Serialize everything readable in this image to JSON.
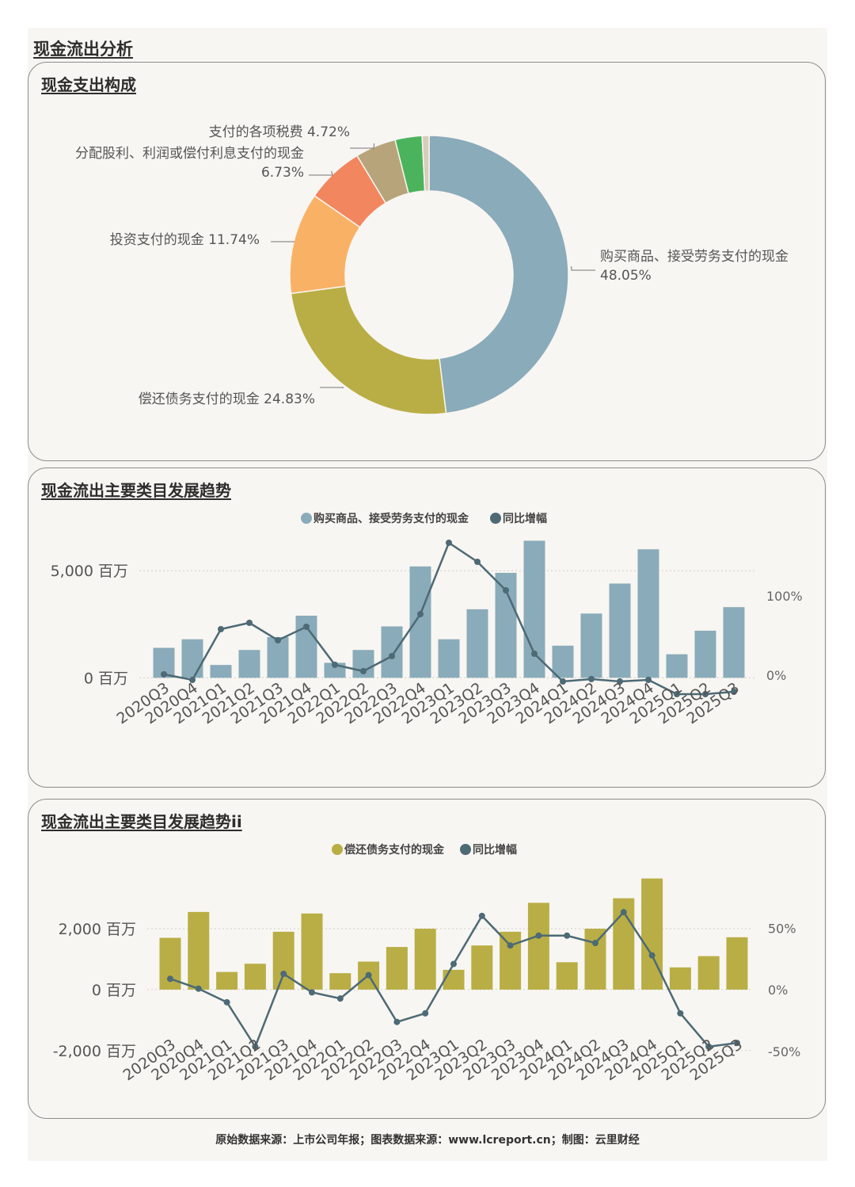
{
  "page": {
    "title": "现金流出分析",
    "footer": "原始数据来源：上市公司年报；图表数据来源：www.lcreport.cn；制图：云里财经"
  },
  "colors": {
    "background": "#f8f6f2",
    "blue_bar": "#8aabb9",
    "olive_bar": "#b9ae45",
    "line": "#4d6a75",
    "grid": "#cfcfcf"
  },
  "chart_data": [
    {
      "type": "pie",
      "title": "现金支出构成",
      "slices": [
        {
          "label": "购买商品、接受劳务支付的现金",
          "value": 48.05,
          "display": "48.05%",
          "color": "#8aabb9"
        },
        {
          "label": "偿还债务支付的现金",
          "value": 24.83,
          "display": "24.83%",
          "color": "#b9ae45"
        },
        {
          "label": "投资支付的现金",
          "value": 11.74,
          "display": "11.74%",
          "color": "#f9b265"
        },
        {
          "label": "分配股利、利润或偿付利息支付的现金",
          "value": 6.73,
          "display": "6.73%",
          "color": "#f2865f"
        },
        {
          "label": "支付的各项税费",
          "value": 4.72,
          "display": "4.72%",
          "color": "#b7a47a"
        },
        {
          "label": "",
          "value": 3.13,
          "display": "",
          "color": "#4bb35c"
        },
        {
          "label": "",
          "value": 0.8,
          "display": "",
          "color": "#d8cdb8"
        }
      ]
    },
    {
      "type": "bar",
      "title": "现金流出主要类目发展趋势",
      "legend": [
        "购买商品、接受劳务支付的现金",
        "同比增幅"
      ],
      "categories": [
        "2020Q3",
        "2020Q4",
        "2021Q1",
        "2021Q2",
        "2021Q3",
        "2021Q4",
        "2022Q1",
        "2022Q2",
        "2022Q3",
        "2022Q4",
        "2023Q1",
        "2023Q2",
        "2023Q3",
        "2023Q4",
        "2024Q1",
        "2024Q2",
        "2024Q3",
        "2024Q4",
        "2025Q1",
        "2025Q2",
        "2025Q3"
      ],
      "series": [
        {
          "name": "购买商品、接受劳务支付的现金",
          "kind": "bar",
          "axis": "left",
          "values": [
            1400,
            1800,
            600,
            1300,
            1900,
            2900,
            700,
            1300,
            2400,
            5200,
            1800,
            3200,
            4900,
            6400,
            1500,
            3000,
            4400,
            6000,
            1100,
            2200,
            3300
          ]
        },
        {
          "name": "同比增幅",
          "kind": "line",
          "axis": "right",
          "values": [
            1,
            -6,
            58,
            66,
            44,
            61,
            13,
            5,
            24,
            77,
            167,
            143,
            107,
            27,
            -8,
            -5,
            -8,
            -6,
            -24,
            -24,
            -21
          ]
        }
      ],
      "left_axis": {
        "ticks": [
          0,
          5000
        ],
        "tick_labels": [
          "0 百万",
          "5,000 百万"
        ],
        "unit": "百万",
        "range": [
          -800,
          6600
        ]
      },
      "right_axis": {
        "ticks": [
          0,
          100
        ],
        "tick_labels": [
          "0%",
          "100%"
        ],
        "range": [
          -25,
          175
        ]
      }
    },
    {
      "type": "bar",
      "title": "现金流出主要类目发展趋势ii",
      "legend": [
        "偿还债务支付的现金",
        "同比增幅"
      ],
      "categories": [
        "2020Q3",
        "2020Q4",
        "2021Q1",
        "2021Q2",
        "2021Q3",
        "2021Q4",
        "2022Q1",
        "2022Q2",
        "2022Q3",
        "2022Q4",
        "2023Q1",
        "2023Q2",
        "2023Q3",
        "2023Q4",
        "2024Q1",
        "2024Q2",
        "2024Q3",
        "2024Q4",
        "2025Q1",
        "2025Q2",
        "2025Q3"
      ],
      "series": [
        {
          "name": "偿还债务支付的现金",
          "kind": "bar",
          "axis": "left",
          "values": [
            1700,
            2550,
            580,
            850,
            1900,
            2500,
            540,
            920,
            1400,
            2000,
            650,
            1450,
            1900,
            2850,
            900,
            2000,
            3000,
            3650,
            730,
            1100,
            1720
          ]
        },
        {
          "name": "同比增幅",
          "kind": "line",
          "axis": "right",
          "values": [
            9,
            1,
            -10,
            -46,
            13,
            -2,
            -7,
            12,
            -26,
            -19,
            21,
            60,
            36,
            44,
            44,
            38,
            63,
            28,
            -19,
            -46,
            -43
          ]
        }
      ],
      "left_axis": {
        "ticks": [
          -2000,
          0,
          2000
        ],
        "tick_labels": [
          "-2,000 百万",
          "0 百万",
          "2,000 百万"
        ],
        "unit": "百万",
        "range": [
          -2500,
          3900
        ]
      },
      "right_axis": {
        "ticks": [
          -50,
          0,
          50
        ],
        "tick_labels": [
          "-50%",
          "0%",
          "50%"
        ],
        "range": [
          -61.5,
          96.5
        ]
      }
    }
  ]
}
